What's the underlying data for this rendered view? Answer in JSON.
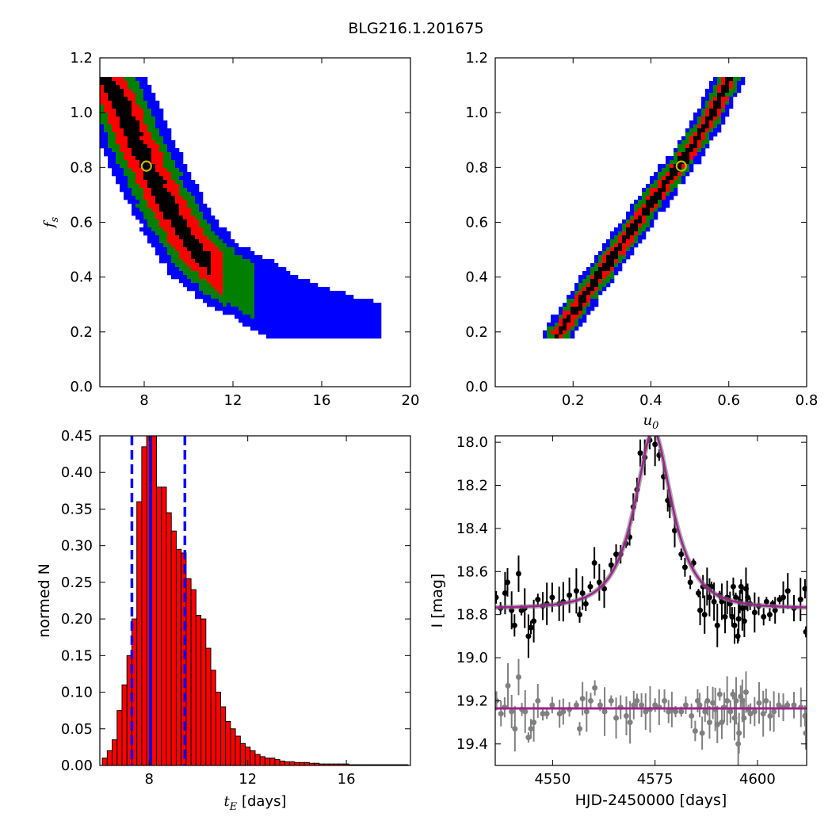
{
  "figure_title": "BLG216.1.201675",
  "chart_data": [
    {
      "type": "heatmap",
      "id": "fs_vs_tE",
      "xlabel": "",
      "ylabel": "f_s",
      "xlim": [
        6,
        20
      ],
      "ylim": [
        0,
        1.2
      ],
      "xticks": [
        8,
        12,
        16,
        20
      ],
      "yticks": [
        0.0,
        0.2,
        0.4,
        0.6,
        0.8,
        1.0,
        1.2
      ],
      "xtick_labels": [
        "8",
        "12",
        "16",
        "20"
      ],
      "ytick_labels": [
        "0.0",
        "0.2",
        "0.4",
        "0.6",
        "0.8",
        "1.0",
        "1.2"
      ],
      "levels": [
        "blue",
        "green",
        "red",
        "black"
      ],
      "colors": {
        "blue": "#0000ff",
        "green": "#007f00",
        "red": "#ff0000",
        "black": "#000000"
      },
      "ridge": [
        [
          6.3,
          1.12
        ],
        [
          7.0,
          1.02
        ],
        [
          7.6,
          0.9
        ],
        [
          8.2,
          0.8
        ],
        [
          8.8,
          0.7
        ],
        [
          9.5,
          0.6
        ],
        [
          10.3,
          0.5
        ],
        [
          11.5,
          0.41
        ],
        [
          13.0,
          0.35
        ],
        [
          14.5,
          0.28
        ],
        [
          16.0,
          0.23
        ],
        [
          17.8,
          0.19
        ]
      ],
      "half_widths": [
        0.35,
        0.75,
        1.15,
        1.55
      ],
      "zone_tmax": [
        11,
        11.5,
        13,
        18.7
      ],
      "best_fit": {
        "x": 8.1,
        "y": 0.805
      }
    },
    {
      "type": "heatmap",
      "id": "fs_vs_u0",
      "xlabel": "u_0",
      "ylabel": "",
      "xlim": [
        0,
        0.8
      ],
      "ylim": [
        0,
        1.2
      ],
      "xticks": [
        0.2,
        0.4,
        0.6,
        0.8
      ],
      "yticks": [
        0.0,
        0.2,
        0.4,
        0.6,
        0.8,
        1.0,
        1.2
      ],
      "xtick_labels": [
        "0.2",
        "0.4",
        "0.6",
        "0.8"
      ],
      "ytick_labels": [
        "0.0",
        "0.2",
        "0.4",
        "0.6",
        "0.8",
        "1.0",
        "1.2"
      ],
      "levels": [
        "blue",
        "green",
        "red",
        "black"
      ],
      "colors": {
        "blue": "#0000ff",
        "green": "#007f00",
        "red": "#ff0000",
        "black": "#000000"
      },
      "ridge": [
        [
          0.16,
          0.19
        ],
        [
          0.25,
          0.37
        ],
        [
          0.34,
          0.55
        ],
        [
          0.42,
          0.71
        ],
        [
          0.48,
          0.82
        ],
        [
          0.54,
          0.95
        ],
        [
          0.6,
          1.12
        ]
      ],
      "half_widths": [
        0.008,
        0.016,
        0.026,
        0.036
      ],
      "best_fit": {
        "x": 0.478,
        "y": 0.805
      }
    },
    {
      "type": "bar",
      "id": "tE_histogram",
      "xlabel": "t_E [days]",
      "ylabel": "normed N",
      "xlim": [
        6,
        18.6
      ],
      "ylim": [
        0,
        0.45
      ],
      "xticks": [
        8,
        12,
        16
      ],
      "yticks": [
        0.0,
        0.05,
        0.1,
        0.15,
        0.2,
        0.25,
        0.3,
        0.35,
        0.4,
        0.45
      ],
      "xtick_labels": [
        "8",
        "12",
        "16"
      ],
      "ytick_labels": [
        "0.00",
        "0.05",
        "0.10",
        "0.15",
        "0.20",
        "0.25",
        "0.30",
        "0.35",
        "0.40",
        "0.45"
      ],
      "bin_start": 6.1,
      "bin_width": 0.2,
      "values": [
        0.01,
        0.02,
        0.035,
        0.075,
        0.11,
        0.15,
        0.2,
        0.36,
        0.435,
        0.455,
        0.45,
        0.38,
        0.38,
        0.345,
        0.32,
        0.295,
        0.29,
        0.255,
        0.24,
        0.205,
        0.2,
        0.16,
        0.13,
        0.1,
        0.08,
        0.06,
        0.05,
        0.04,
        0.03,
        0.025,
        0.02,
        0.015,
        0.012,
        0.01,
        0.01,
        0.008,
        0.006,
        0.005,
        0.005,
        0.004,
        0.004,
        0.004,
        0.003,
        0.003,
        0.002,
        0.002,
        0.002,
        0.002,
        0.002,
        0.002,
        0.001,
        0.001,
        0.001,
        0.001,
        0.001,
        0.001,
        0.001,
        0.001,
        0.001,
        0.001,
        0.001,
        0.001
      ],
      "bar_color": "#ff0000",
      "median_line": 8.05,
      "interval_lines": [
        7.3,
        9.45
      ],
      "line_color": "#0000ff"
    },
    {
      "type": "scatter",
      "id": "light_curve",
      "xlabel": "HJD-2450000 [days]",
      "ylabel": "I [mag]",
      "xlim": [
        4536,
        4612
      ],
      "ylim": [
        19.5,
        17.97
      ],
      "xticks": [
        4550,
        4575,
        4600
      ],
      "yticks": [
        18.0,
        18.2,
        18.4,
        18.6,
        18.8,
        19.0,
        19.2,
        19.4
      ],
      "xtick_labels": [
        "4550",
        "4575",
        "4600"
      ],
      "ytick_labels": [
        "18.0",
        "18.2",
        "18.4",
        "18.6",
        "18.8",
        "19.0",
        "19.2",
        "19.4"
      ],
      "model": {
        "t0": 4574.6,
        "tE": 8.1,
        "u0": 0.48,
        "base_mag": 18.77,
        "residual_offset": 19.235
      },
      "model_color": "#a0208f",
      "series": [
        {
          "name": "",
          "color": "#000000",
          "points": [
            [
              4536.2,
              18.72
            ],
            [
              4537.3,
              18.77
            ],
            [
              4538.4,
              18.7
            ],
            [
              4539.0,
              18.65
            ],
            [
              4540.0,
              18.78
            ],
            [
              4540.7,
              18.85
            ],
            [
              4541.7,
              18.61
            ],
            [
              4542.4,
              18.78
            ],
            [
              4543.2,
              18.77
            ],
            [
              4544.1,
              18.9
            ],
            [
              4544.7,
              18.86
            ],
            [
              4545.4,
              18.83
            ],
            [
              4546.4,
              18.73
            ],
            [
              4547.6,
              18.76
            ],
            [
              4548.6,
              18.75
            ],
            [
              4549.9,
              18.72
            ],
            [
              4551.6,
              18.75
            ],
            [
              4552.6,
              18.74
            ],
            [
              4554.1,
              18.71
            ],
            [
              4555.8,
              18.69
            ],
            [
              4556.6,
              18.8
            ],
            [
              4557.3,
              18.7
            ],
            [
              4558.1,
              18.75
            ],
            [
              4559.2,
              18.67
            ],
            [
              4560.2,
              18.56
            ],
            [
              4561.4,
              18.65
            ],
            [
              4562.6,
              18.68
            ],
            [
              4564.3,
              18.57
            ],
            [
              4565.5,
              18.52
            ],
            [
              4566.6,
              18.52
            ],
            [
              4567.9,
              18.47
            ],
            [
              4568.8,
              18.44
            ],
            [
              4569.7,
              18.3
            ],
            [
              4570.6,
              18.22
            ],
            [
              4571.4,
              18.05
            ],
            [
              4572.5,
              18.07
            ],
            [
              4573.7,
              17.99
            ],
            [
              4575.0,
              18.01
            ],
            [
              4576.0,
              18.06
            ],
            [
              4577.1,
              18.16
            ],
            [
              4578.1,
              18.27
            ],
            [
              4578.6,
              18.29
            ],
            [
              4579.8,
              18.41
            ],
            [
              4581.4,
              18.52
            ],
            [
              4582.3,
              18.58
            ],
            [
              4583.6,
              18.65
            ],
            [
              4584.4,
              18.56
            ],
            [
              4585.6,
              18.7
            ],
            [
              4586.0,
              18.78
            ],
            [
              4586.7,
              18.67
            ],
            [
              4587.1,
              18.8
            ],
            [
              4587.7,
              18.67
            ],
            [
              4588.3,
              18.72
            ],
            [
              4588.8,
              18.67
            ],
            [
              4589.4,
              18.74
            ],
            [
              4590.2,
              18.85
            ],
            [
              4590.8,
              18.71
            ],
            [
              4591.3,
              18.74
            ],
            [
              4592.1,
              18.81
            ],
            [
              4592.6,
              18.72
            ],
            [
              4593.3,
              18.75
            ],
            [
              4593.8,
              18.81
            ],
            [
              4594.1,
              18.67
            ],
            [
              4594.4,
              18.85
            ],
            [
              4594.7,
              18.72
            ],
            [
              4595.2,
              18.9
            ],
            [
              4595.4,
              18.82
            ],
            [
              4595.7,
              18.74
            ],
            [
              4596.0,
              18.67
            ],
            [
              4596.3,
              18.77
            ],
            [
              4596.8,
              18.83
            ],
            [
              4597.2,
              18.68
            ],
            [
              4597.6,
              18.72
            ],
            [
              4598.2,
              18.75
            ],
            [
              4599.3,
              18.79
            ],
            [
              4600.3,
              18.76
            ],
            [
              4601.5,
              18.81
            ],
            [
              4602.2,
              18.74
            ],
            [
              4603.0,
              18.8
            ],
            [
              4603.7,
              18.75
            ],
            [
              4604.3,
              18.78
            ],
            [
              4605.4,
              18.73
            ],
            [
              4606.3,
              18.72
            ],
            [
              4607.4,
              18.69
            ],
            [
              4608.9,
              18.77
            ],
            [
              4610.5,
              18.73
            ],
            [
              4611.6,
              18.68
            ],
            [
              4611.8,
              18.88
            ]
          ]
        },
        {
          "name": "",
          "color": "#808080",
          "points": [
            [
              4536.3,
              19.2
            ],
            [
              4537.4,
              19.26
            ],
            [
              4538.3,
              19.23
            ],
            [
              4539.1,
              19.13
            ],
            [
              4540.0,
              19.25
            ],
            [
              4540.8,
              19.33
            ],
            [
              4541.7,
              19.09
            ],
            [
              4542.5,
              19.24
            ],
            [
              4543.3,
              19.25
            ],
            [
              4544.1,
              19.37
            ],
            [
              4544.7,
              19.33
            ],
            [
              4545.4,
              19.3
            ],
            [
              4546.4,
              19.2
            ],
            [
              4547.6,
              19.26
            ],
            [
              4548.6,
              19.26
            ],
            [
              4549.9,
              19.22
            ],
            [
              4551.7,
              19.26
            ],
            [
              4552.6,
              19.25
            ],
            [
              4554.1,
              19.24
            ],
            [
              4555.8,
              19.22
            ],
            [
              4556.6,
              19.33
            ],
            [
              4557.3,
              19.19
            ],
            [
              4558.3,
              19.25
            ],
            [
              4559.3,
              19.2
            ],
            [
              4560.3,
              19.14
            ],
            [
              4561.6,
              19.22
            ],
            [
              4562.7,
              19.25
            ],
            [
              4564.3,
              19.2
            ],
            [
              4565.5,
              19.28
            ],
            [
              4566.6,
              19.23
            ],
            [
              4568.0,
              19.27
            ],
            [
              4568.9,
              19.3
            ],
            [
              4569.8,
              19.22
            ],
            [
              4570.6,
              19.2
            ],
            [
              4571.7,
              19.22
            ],
            [
              4572.7,
              19.25
            ],
            [
              4573.8,
              19.24
            ],
            [
              4575.0,
              19.22
            ],
            [
              4576.0,
              19.23
            ],
            [
              4577.3,
              19.2
            ],
            [
              4578.3,
              19.25
            ],
            [
              4579.1,
              19.24
            ],
            [
              4580.0,
              19.25
            ],
            [
              4581.4,
              19.25
            ],
            [
              4582.5,
              19.22
            ],
            [
              4583.9,
              19.27
            ],
            [
              4584.8,
              19.34
            ],
            [
              4585.4,
              19.2
            ],
            [
              4585.9,
              19.22
            ],
            [
              4586.5,
              19.35
            ],
            [
              4587.2,
              19.25
            ],
            [
              4587.8,
              19.2
            ],
            [
              4588.3,
              19.3
            ],
            [
              4589.1,
              19.21
            ],
            [
              4589.7,
              19.24
            ],
            [
              4590.2,
              19.31
            ],
            [
              4590.8,
              19.17
            ],
            [
              4591.3,
              19.3
            ],
            [
              4591.9,
              19.23
            ],
            [
              4592.6,
              19.2
            ],
            [
              4593.4,
              19.25
            ],
            [
              4594.0,
              19.17
            ],
            [
              4594.4,
              19.28
            ],
            [
              4594.8,
              19.2
            ],
            [
              4595.3,
              19.4
            ],
            [
              4595.5,
              19.35
            ],
            [
              4595.9,
              19.18
            ],
            [
              4596.3,
              19.2
            ],
            [
              4596.7,
              19.28
            ],
            [
              4597.2,
              19.16
            ],
            [
              4597.8,
              19.24
            ],
            [
              4598.3,
              19.26
            ],
            [
              4599.3,
              19.25
            ],
            [
              4600.4,
              19.21
            ],
            [
              4601.4,
              19.26
            ],
            [
              4602.1,
              19.2
            ],
            [
              4603.1,
              19.27
            ],
            [
              4604.0,
              19.25
            ],
            [
              4605.2,
              19.22
            ],
            [
              4606.3,
              19.23
            ],
            [
              4607.3,
              19.22
            ],
            [
              4608.9,
              19.22
            ],
            [
              4610.6,
              19.23
            ],
            [
              4611.8,
              19.35
            ],
            [
              4611.6,
              19.27
            ]
          ]
        }
      ]
    }
  ]
}
